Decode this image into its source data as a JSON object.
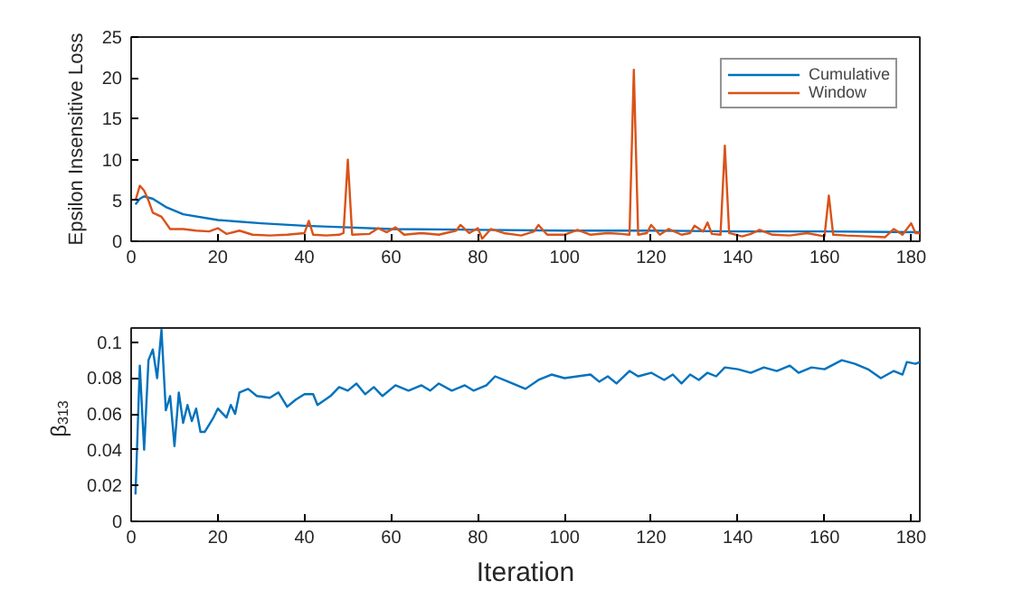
{
  "chart_data": [
    {
      "type": "line",
      "ylabel": "Epsilon Insensitive Loss",
      "xlim": [
        0,
        182
      ],
      "xticks": [
        0,
        20,
        40,
        60,
        80,
        100,
        120,
        140,
        160,
        180
      ],
      "ylim": [
        0,
        25
      ],
      "yticks": [
        0,
        5,
        10,
        15,
        20,
        25
      ],
      "grid": false,
      "legend": "top right",
      "series": [
        {
          "name": "Cumulative",
          "color": "#0072bd",
          "x": [
            1,
            2,
            3,
            5,
            8,
            12,
            20,
            30,
            40,
            50,
            60,
            80,
            100,
            120,
            140,
            160,
            182
          ],
          "values": [
            4.5,
            5.2,
            5.5,
            5.2,
            4.2,
            3.3,
            2.6,
            2.2,
            1.9,
            1.7,
            1.5,
            1.4,
            1.3,
            1.3,
            1.2,
            1.2,
            1.1
          ]
        },
        {
          "name": "Window",
          "color": "#d95319",
          "x": [
            1,
            2,
            3,
            4,
            5,
            7,
            9,
            12,
            15,
            18,
            20,
            22,
            25,
            28,
            32,
            36,
            40,
            41,
            42,
            45,
            48,
            49,
            50,
            51,
            55,
            57,
            59,
            61,
            63,
            67,
            71,
            75,
            76,
            78,
            80,
            81,
            83,
            86,
            90,
            93,
            94,
            96,
            100,
            103,
            106,
            110,
            113,
            115,
            116,
            117,
            119,
            120,
            122,
            124,
            127,
            129,
            130,
            132,
            133,
            134,
            136,
            137,
            138,
            141,
            143,
            145,
            148,
            152,
            156,
            160,
            161,
            162,
            165,
            170,
            174,
            176,
            178,
            180,
            181,
            182
          ],
          "values": [
            5,
            6.8,
            6.2,
            5,
            3.5,
            3,
            1.5,
            1.5,
            1.3,
            1.2,
            1.6,
            0.9,
            1.3,
            0.8,
            0.7,
            0.8,
            1,
            2.5,
            0.8,
            0.7,
            0.8,
            1,
            10,
            0.8,
            0.9,
            1.6,
            1.1,
            1.7,
            0.8,
            1,
            0.8,
            1.3,
            2,
            1,
            1.6,
            0.3,
            1.5,
            1,
            0.7,
            1.2,
            2,
            0.8,
            0.8,
            1.4,
            0.8,
            1,
            0.9,
            0.8,
            21,
            0.8,
            1,
            2,
            0.8,
            1.5,
            0.8,
            1,
            1.9,
            1.2,
            2.3,
            0.9,
            0.8,
            11.7,
            1,
            0.6,
            0.9,
            1.4,
            0.8,
            0.7,
            1,
            0.6,
            5.6,
            0.8,
            0.7,
            0.6,
            0.5,
            1.5,
            0.8,
            2.2,
            1,
            1
          ]
        }
      ]
    },
    {
      "type": "line",
      "xlabel": "Iteration",
      "ylabel": "β$_{313}$",
      "xlim": [
        0,
        182
      ],
      "xticks": [
        0,
        20,
        40,
        60,
        80,
        100,
        120,
        140,
        160,
        180
      ],
      "ylim": [
        0,
        0.108
      ],
      "yticks": [
        0,
        0.02,
        0.04,
        0.06,
        0.08,
        0.1
      ],
      "grid": false,
      "legend": false,
      "series": [
        {
          "color": "#0072bd",
          "x": [
            1,
            2,
            3,
            4,
            5,
            6,
            7,
            8,
            9,
            10,
            11,
            12,
            13,
            14,
            15,
            16,
            17,
            19,
            20,
            22,
            23,
            24,
            25,
            27,
            29,
            32,
            34,
            36,
            38,
            40,
            42,
            43,
            46,
            48,
            50,
            52,
            54,
            56,
            58,
            61,
            64,
            67,
            69,
            71,
            74,
            77,
            79,
            82,
            84,
            87,
            91,
            94,
            97,
            100,
            103,
            106,
            108,
            110,
            112,
            115,
            117,
            120,
            123,
            125,
            127,
            129,
            131,
            133,
            135,
            137,
            140,
            143,
            146,
            149,
            152,
            154,
            157,
            160,
            164,
            167,
            170,
            173,
            176,
            178,
            179,
            181,
            182
          ],
          "values": [
            0.015,
            0.087,
            0.04,
            0.09,
            0.096,
            0.08,
            0.107,
            0.062,
            0.07,
            0.042,
            0.072,
            0.055,
            0.065,
            0.056,
            0.063,
            0.05,
            0.05,
            0.058,
            0.063,
            0.058,
            0.065,
            0.06,
            0.072,
            0.074,
            0.07,
            0.069,
            0.072,
            0.064,
            0.068,
            0.071,
            0.071,
            0.065,
            0.07,
            0.075,
            0.073,
            0.077,
            0.071,
            0.075,
            0.07,
            0.076,
            0.073,
            0.076,
            0.073,
            0.077,
            0.073,
            0.076,
            0.073,
            0.076,
            0.081,
            0.078,
            0.074,
            0.079,
            0.082,
            0.08,
            0.081,
            0.082,
            0.078,
            0.081,
            0.077,
            0.084,
            0.081,
            0.083,
            0.079,
            0.082,
            0.077,
            0.082,
            0.079,
            0.083,
            0.081,
            0.086,
            0.085,
            0.083,
            0.086,
            0.084,
            0.087,
            0.083,
            0.086,
            0.085,
            0.09,
            0.088,
            0.085,
            0.08,
            0.084,
            0.082,
            0.089,
            0.088,
            0.089
          ]
        }
      ]
    }
  ]
}
